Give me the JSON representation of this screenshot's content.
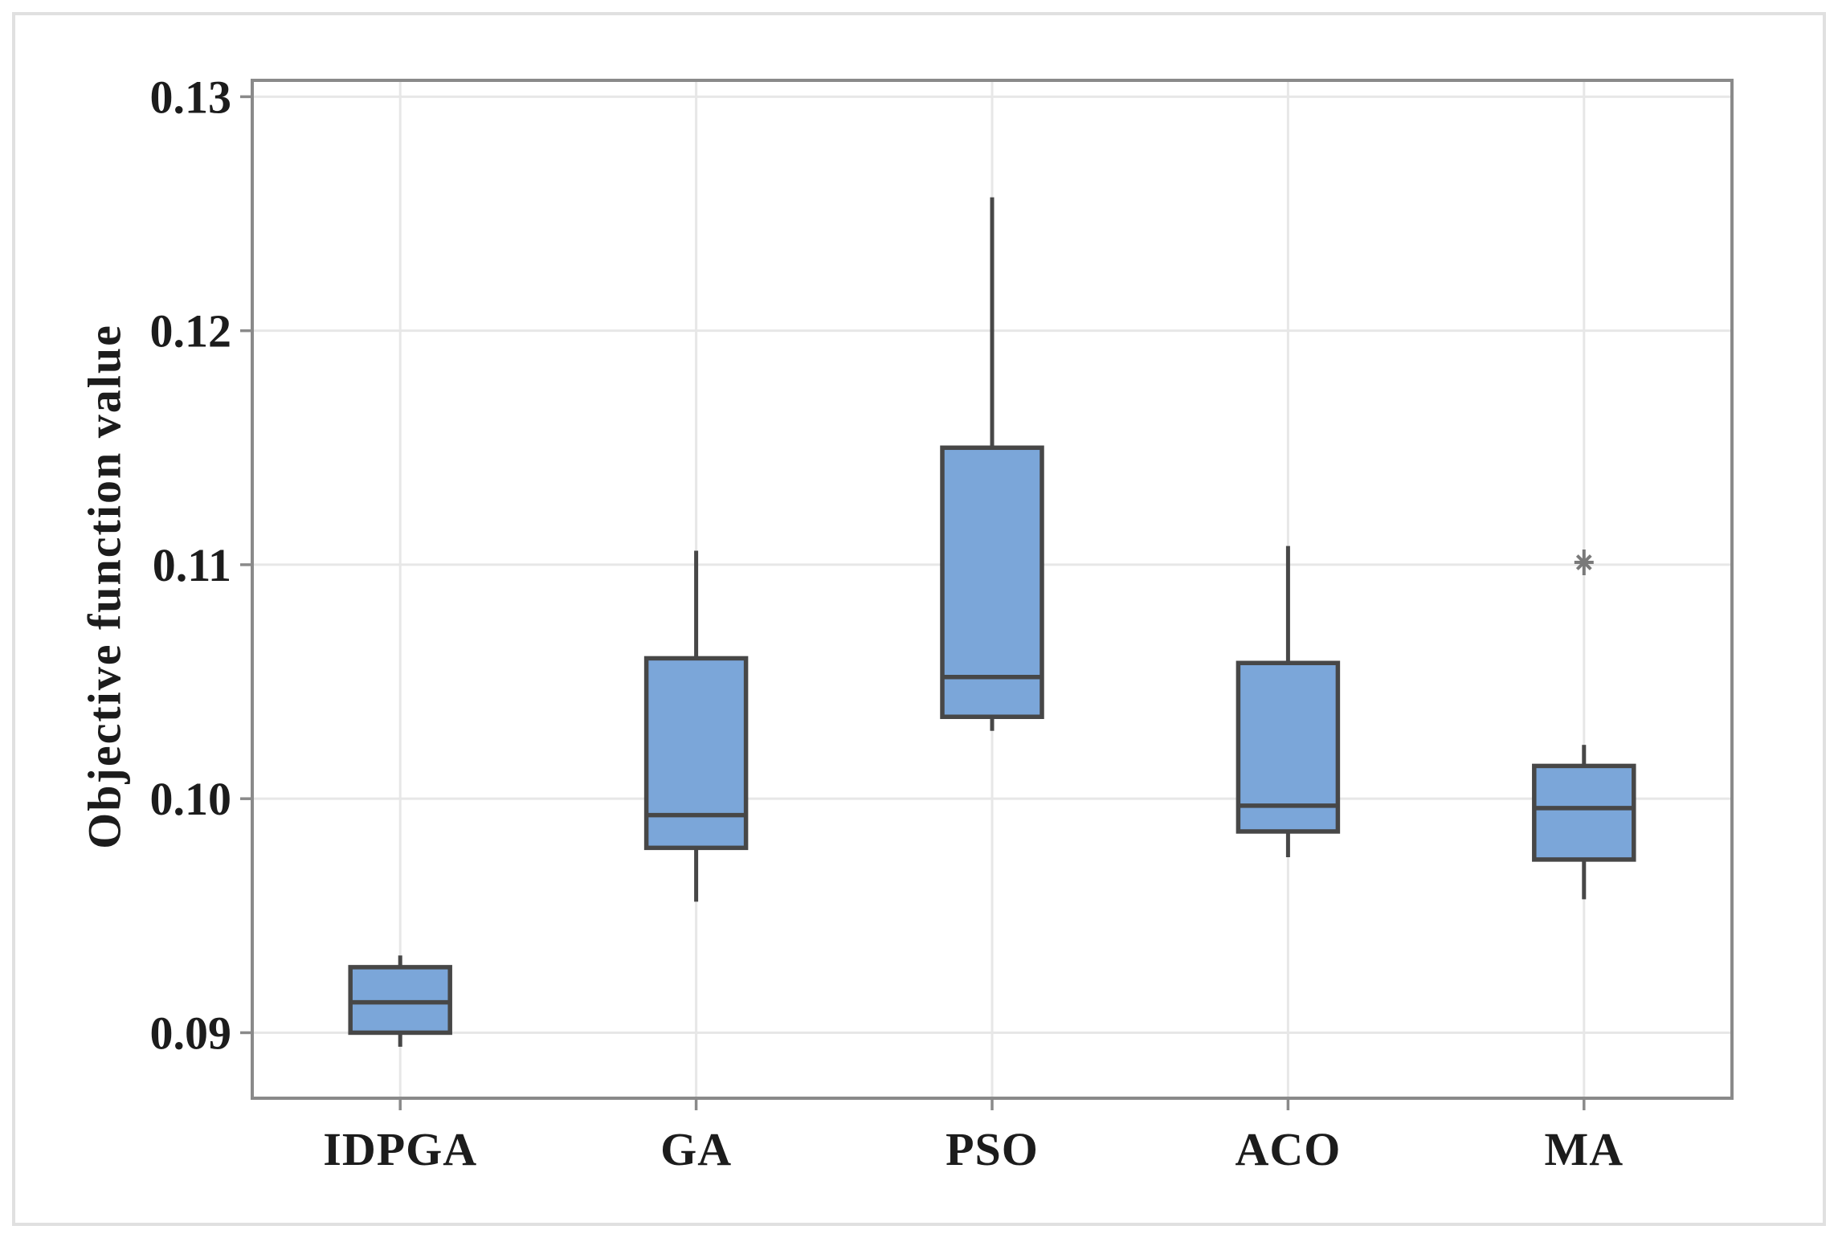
{
  "chart_data": {
    "type": "boxplot",
    "title": "",
    "xlabel": "",
    "ylabel": "Objective function value",
    "categories": [
      "IDPGA",
      "GA",
      "PSO",
      "ACO",
      "MA"
    ],
    "ylim": [
      0.0872,
      0.1307
    ],
    "y_ticks": [
      {
        "value": 0.09,
        "label": "0.09"
      },
      {
        "value": 0.1,
        "label": "0.10"
      },
      {
        "value": 0.11,
        "label": "0.11"
      },
      {
        "value": 0.12,
        "label": "0.12"
      },
      {
        "value": 0.13,
        "label": "0.13"
      }
    ],
    "grid": "both",
    "legend": "none",
    "series": [
      {
        "name": "IDPGA",
        "whisker_low": 0.0894,
        "q1": 0.09,
        "median": 0.0913,
        "q3": 0.0928,
        "whisker_high": 0.0933,
        "outliers": []
      },
      {
        "name": "GA",
        "whisker_low": 0.0956,
        "q1": 0.0979,
        "median": 0.0993,
        "q3": 0.106,
        "whisker_high": 0.1106,
        "outliers": []
      },
      {
        "name": "PSO",
        "whisker_low": 0.1029,
        "q1": 0.1035,
        "median": 0.1052,
        "q3": 0.115,
        "whisker_high": 0.1257,
        "outliers": []
      },
      {
        "name": "ACO",
        "whisker_low": 0.0975,
        "q1": 0.0986,
        "median": 0.0997,
        "q3": 0.1058,
        "whisker_high": 0.1108,
        "outliers": []
      },
      {
        "name": "MA",
        "whisker_low": 0.0957,
        "q1": 0.0974,
        "median": 0.0996,
        "q3": 0.1014,
        "whisker_high": 0.1023,
        "outliers": [
          0.1101
        ]
      }
    ],
    "colors": {
      "box_fill": "#7ba6d9",
      "box_line": "#474747",
      "median_line": "#474747",
      "whisker_line": "#474747",
      "grid_line": "#e7e7e7",
      "axis_frame": "#8a8a8a",
      "tick_mark": "#8a8a8a",
      "tick_text": "#1c1c1c",
      "outlier_marker": "#7a7a7a",
      "figure_border": "#e0e0e0",
      "background": "#ffffff"
    }
  }
}
